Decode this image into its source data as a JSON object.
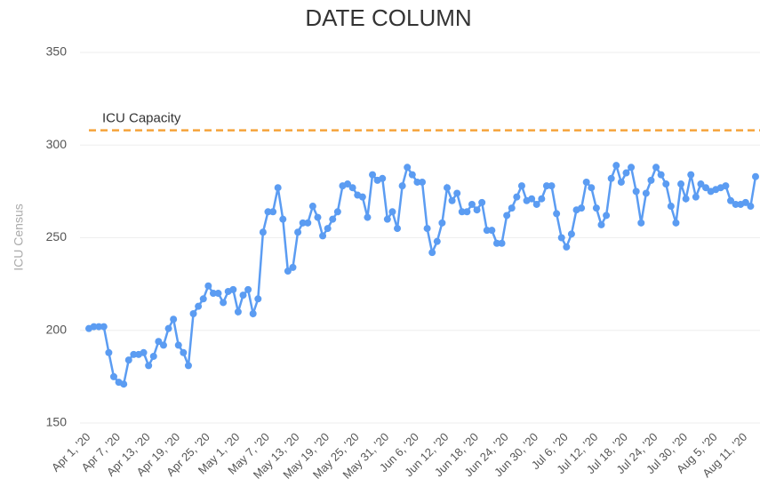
{
  "chart_data": {
    "type": "line",
    "title": "DATE COLUMN",
    "y_label": "ICU Census",
    "categories": [
      "Apr 1, '20",
      null,
      null,
      null,
      null,
      null,
      "Apr 7, '20",
      null,
      null,
      null,
      null,
      null,
      "Apr 13, '20",
      null,
      null,
      null,
      null,
      null,
      "Apr 19, '20",
      null,
      null,
      null,
      null,
      null,
      "Apr 25, '20",
      null,
      null,
      null,
      null,
      null,
      "May 1, '20",
      null,
      null,
      null,
      null,
      null,
      "May 7, '20",
      null,
      null,
      null,
      null,
      null,
      "May 13, '20",
      null,
      null,
      null,
      null,
      null,
      "May 19, '20",
      null,
      null,
      null,
      null,
      null,
      "May 25, '20",
      null,
      null,
      null,
      null,
      null,
      "May 31, '20",
      null,
      null,
      null,
      null,
      null,
      "Jun 6, '20",
      null,
      null,
      null,
      null,
      null,
      "Jun 12, '20",
      null,
      null,
      null,
      null,
      null,
      "Jun 18, '20",
      null,
      null,
      null,
      null,
      null,
      "Jun 24, '20",
      null,
      null,
      null,
      null,
      null,
      "Jun 30, '20",
      null,
      null,
      null,
      null,
      null,
      "Jul 6, '20",
      null,
      null,
      null,
      null,
      null,
      "Jul 12, '20",
      null,
      null,
      null,
      null,
      null,
      "Jul 18, '20",
      null,
      null,
      null,
      null,
      null,
      "Jul 24, '20",
      null,
      null,
      null,
      null,
      null,
      "Jul 30, '20",
      null,
      null,
      null,
      null,
      null,
      "Aug 5, '20",
      null,
      null,
      null,
      null,
      null,
      "Aug 11, '20",
      null,
      null
    ],
    "series": [
      {
        "name": "ICU Census",
        "color": "#5b9cf2",
        "values": [
          201,
          202,
          202,
          202,
          188,
          175,
          172,
          171,
          184,
          187,
          187,
          188,
          181,
          186,
          194,
          192,
          201,
          206,
          192,
          188,
          181,
          209,
          213,
          217,
          224,
          220,
          220,
          215,
          221,
          222,
          210,
          219,
          222,
          209,
          217,
          253,
          264,
          264,
          277,
          260,
          232,
          234,
          253,
          258,
          258,
          267,
          261,
          251,
          255,
          260,
          264,
          278,
          279,
          277,
          273,
          272,
          261,
          284,
          281,
          282,
          260,
          264,
          255,
          278,
          288,
          284,
          280,
          280,
          255,
          242,
          248,
          258,
          277,
          270,
          274,
          264,
          264,
          268,
          265,
          269,
          254,
          254,
          247,
          247,
          262,
          266,
          272,
          278,
          270,
          271,
          268,
          271,
          278,
          278,
          263,
          250,
          245,
          252,
          265,
          266,
          280,
          277,
          266,
          257,
          262,
          282,
          289,
          280,
          285,
          288,
          275,
          258,
          274,
          281,
          288,
          284,
          279,
          267,
          258,
          279,
          271,
          284,
          272,
          279,
          277,
          275,
          276,
          277,
          278,
          270,
          268,
          268,
          269,
          267,
          283
        ]
      }
    ],
    "reference_lines": [
      {
        "value": 308,
        "label": "ICU Capacity",
        "color": "#f5a33a"
      }
    ],
    "ylim": [
      150,
      350
    ],
    "yticks": [
      150,
      200,
      250,
      300,
      350
    ],
    "grid": true
  }
}
